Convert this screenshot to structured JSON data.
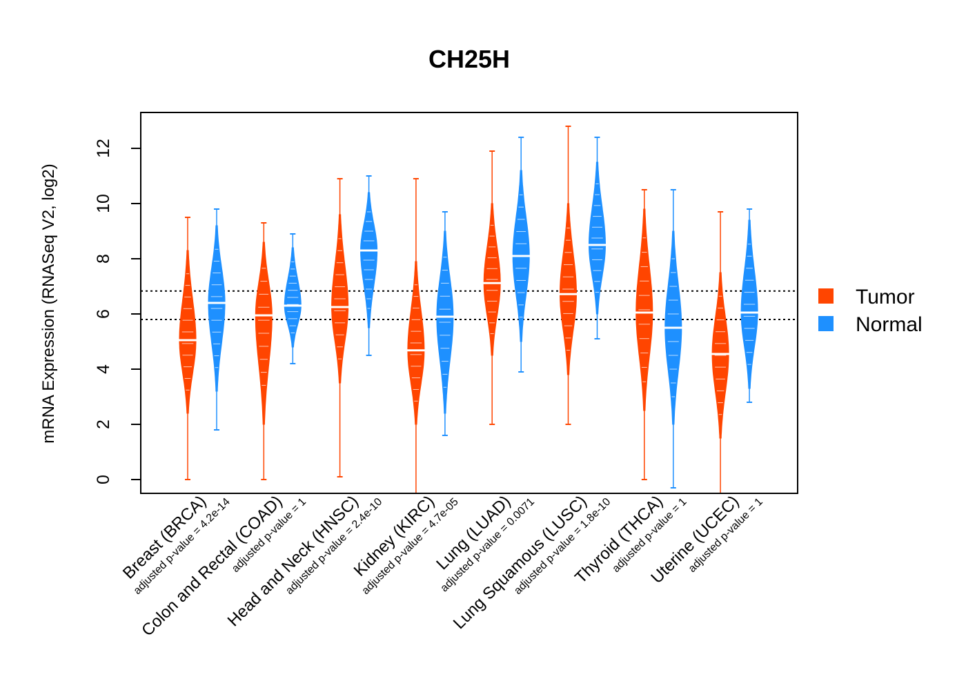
{
  "chart_data": {
    "type": "violin",
    "title": "CH25H",
    "xlabel": "",
    "ylabel": "mRNA Expression (RNASeq V2, log2)",
    "ylim": [
      -0.5,
      13.3
    ],
    "yticks": [
      0,
      2,
      4,
      6,
      8,
      10,
      12
    ],
    "reference_lines": [
      5.8,
      6.83
    ],
    "grid": false,
    "legend_position": "right",
    "colors": {
      "Tumor": "#FF4500",
      "Normal": "#1E90FF"
    },
    "categories": [
      "Breast (BRCA)",
      "Colon and Rectal (COAD)",
      "Head and Neck (HNSC)",
      "Kidney (KIRC)",
      "Lung (LUAD)",
      "Lung Squamous (LUSC)",
      "Thyroid (THCA)",
      "Uterine (UCEC)"
    ],
    "pvalues": [
      "adjusted p-value = 4.2e-14",
      "adjusted p-value = 1",
      "adjusted p-value = 2.4e-10",
      "adjusted p-value = 4.7e-05",
      "adjusted p-value = 0.0071",
      "adjusted p-value = 1.8e-10",
      "adjusted p-value = 1",
      "adjusted p-value = 1"
    ],
    "series": [
      {
        "name": "Tumor",
        "median": [
          5.05,
          5.95,
          6.25,
          4.68,
          7.12,
          6.72,
          6.05,
          4.55
        ],
        "min": [
          0.0,
          0.0,
          0.1,
          -0.5,
          2.0,
          2.0,
          0.0,
          -0.5
        ],
        "max": [
          9.5,
          9.3,
          10.9,
          10.9,
          11.9,
          12.8,
          10.5,
          9.7
        ],
        "core_low": [
          2.4,
          2.0,
          3.5,
          2.0,
          4.5,
          3.8,
          2.5,
          1.5
        ],
        "core_high": [
          8.3,
          8.6,
          9.6,
          7.9,
          10.0,
          10.0,
          9.8,
          7.5
        ]
      },
      {
        "name": "Normal",
        "median": [
          6.4,
          6.3,
          8.3,
          5.9,
          8.1,
          8.5,
          5.5,
          6.05
        ],
        "min": [
          1.8,
          4.2,
          4.5,
          1.6,
          3.9,
          5.1,
          -0.3,
          2.8
        ],
        "max": [
          9.8,
          8.9,
          11.0,
          9.7,
          12.4,
          12.4,
          10.5,
          9.8
        ],
        "core_low": [
          3.2,
          4.8,
          5.5,
          2.4,
          5.0,
          6.0,
          2.0,
          3.3
        ],
        "core_high": [
          9.2,
          8.4,
          10.4,
          9.0,
          11.2,
          11.5,
          9.0,
          9.4
        ]
      }
    ]
  }
}
